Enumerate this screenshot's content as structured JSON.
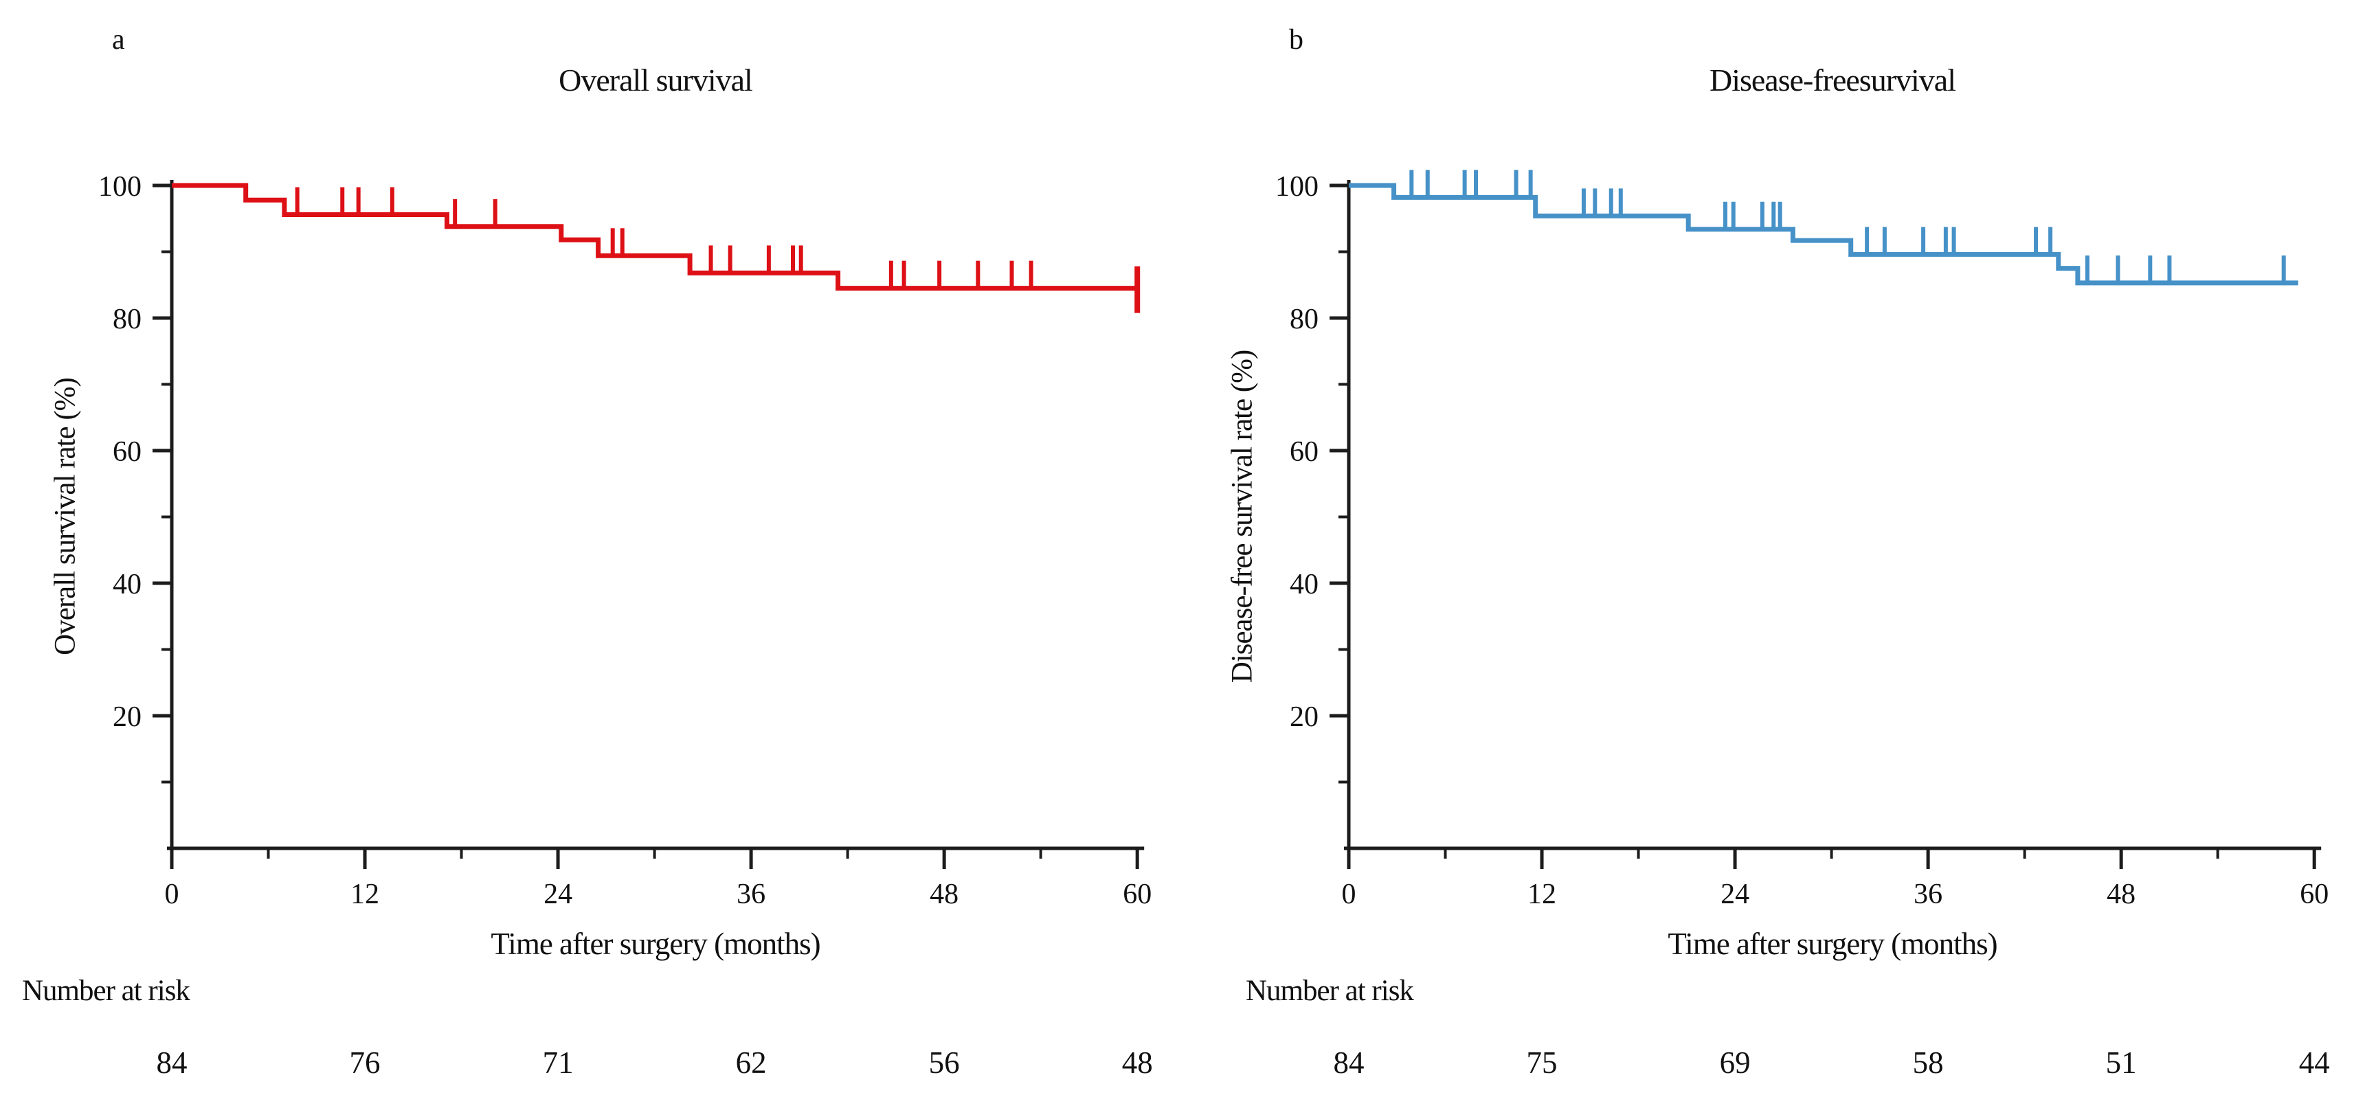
{
  "figure": {
    "background": "#ffffff",
    "axis_color": "#1c1c1c",
    "panels": [
      {
        "id": "a",
        "label": "a",
        "title": "Overall survival",
        "y_axis_label": "Overall survival rate (%)",
        "x_axis_label": "Time after surgery (months)",
        "number_at_risk_label": "Number at risk",
        "curve_color": "#dd1016"
      },
      {
        "id": "b",
        "label": "b",
        "title": "Disease-freesurvival",
        "y_axis_label": "Disease-free survival rate (%)",
        "x_axis_label": "Time after surgery (months)",
        "number_at_risk_label": "Number at risk",
        "curve_color": "#4692c8"
      }
    ]
  },
  "chart_data": [
    {
      "type": "line",
      "subtype": "kaplan-meier-step",
      "panel": "a",
      "title": "Overall survival",
      "xlabel": "Time after surgery (months)",
      "ylabel": "Overall survival rate (%)",
      "xlim": [
        0,
        60
      ],
      "ylim": [
        0,
        100
      ],
      "x_ticks": [
        0,
        12,
        24,
        36,
        48,
        60
      ],
      "x_minor_ticks": [
        6,
        18,
        30,
        42,
        54
      ],
      "y_ticks": [
        20,
        40,
        60,
        80,
        100
      ],
      "y_minor_ticks": [
        10,
        30,
        50,
        70,
        90
      ],
      "grid": false,
      "legend": "none",
      "series": [
        {
          "name": "Overall survival",
          "color": "#dd1016",
          "n_at_start": 84,
          "end_month": 60,
          "steps": [
            [
              0,
              100
            ],
            [
              4.6,
              97.8
            ],
            [
              7.0,
              95.6
            ],
            [
              17.1,
              93.8
            ],
            [
              24.2,
              91.8
            ],
            [
              26.5,
              89.4
            ],
            [
              32.2,
              86.8
            ],
            [
              41.4,
              84.5
            ]
          ],
          "censor_marks": [
            [
              7.8,
              95.6
            ],
            [
              10.6,
              95.6
            ],
            [
              11.6,
              95.6
            ],
            [
              13.7,
              95.6
            ],
            [
              17.6,
              93.8
            ],
            [
              20.1,
              93.8
            ],
            [
              27.4,
              89.4
            ],
            [
              28.0,
              89.4
            ],
            [
              33.5,
              86.8
            ],
            [
              34.7,
              86.8
            ],
            [
              37.1,
              86.8
            ],
            [
              38.6,
              86.8
            ],
            [
              39.1,
              86.8
            ],
            [
              44.7,
              84.5
            ],
            [
              45.5,
              84.5
            ],
            [
              47.7,
              84.5
            ],
            [
              50.1,
              84.5
            ],
            [
              52.2,
              84.5
            ],
            [
              53.4,
              84.5
            ]
          ],
          "terminal_mark": [
            60,
            84.5
          ]
        }
      ],
      "number_at_risk": {
        "label": "Number at risk",
        "times": [
          0,
          12,
          24,
          36,
          48,
          60
        ],
        "values": [
          84,
          76,
          71,
          62,
          56,
          48
        ]
      }
    },
    {
      "type": "line",
      "subtype": "kaplan-meier-step",
      "panel": "b",
      "title": "Disease-freesurvival",
      "xlabel": "Time after surgery (months)",
      "ylabel": "Disease-free survival rate (%)",
      "xlim": [
        0,
        60
      ],
      "ylim": [
        0,
        100
      ],
      "x_ticks": [
        0,
        12,
        24,
        36,
        48,
        60
      ],
      "x_minor_ticks": [
        6,
        18,
        30,
        42,
        54
      ],
      "y_ticks": [
        20,
        40,
        60,
        80,
        100
      ],
      "y_minor_ticks": [
        10,
        30,
        50,
        70,
        90
      ],
      "grid": false,
      "legend": "none",
      "series": [
        {
          "name": "Disease-free survival",
          "color": "#4692c8",
          "n_at_start": 84,
          "end_month": 59,
          "steps": [
            [
              0,
              100
            ],
            [
              2.8,
              98.2
            ],
            [
              11.6,
              95.4
            ],
            [
              21.1,
              93.4
            ],
            [
              27.6,
              91.7
            ],
            [
              31.2,
              89.6
            ],
            [
              44.1,
              87.5
            ],
            [
              45.3,
              85.3
            ]
          ],
          "censor_marks": [
            [
              3.9,
              98.2
            ],
            [
              4.9,
              98.2
            ],
            [
              7.2,
              98.2
            ],
            [
              7.9,
              98.2
            ],
            [
              10.4,
              98.2
            ],
            [
              11.3,
              98.2
            ],
            [
              14.6,
              95.4
            ],
            [
              15.3,
              95.4
            ],
            [
              16.3,
              95.4
            ],
            [
              16.9,
              95.4
            ],
            [
              23.4,
              93.4
            ],
            [
              23.9,
              93.4
            ],
            [
              25.7,
              93.4
            ],
            [
              26.4,
              93.4
            ],
            [
              26.8,
              93.4
            ],
            [
              32.2,
              89.6
            ],
            [
              33.3,
              89.6
            ],
            [
              35.7,
              89.6
            ],
            [
              37.1,
              89.6
            ],
            [
              37.6,
              89.6
            ],
            [
              42.7,
              89.6
            ],
            [
              43.6,
              89.6
            ],
            [
              45.9,
              85.3
            ],
            [
              47.8,
              85.3
            ],
            [
              49.8,
              85.3
            ],
            [
              51.0,
              85.3
            ],
            [
              58.1,
              85.3
            ]
          ],
          "terminal_mark": null
        }
      ],
      "number_at_risk": {
        "label": "Number at risk",
        "times": [
          0,
          12,
          24,
          36,
          48,
          60
        ],
        "values": [
          84,
          75,
          69,
          58,
          51,
          44
        ]
      }
    }
  ]
}
